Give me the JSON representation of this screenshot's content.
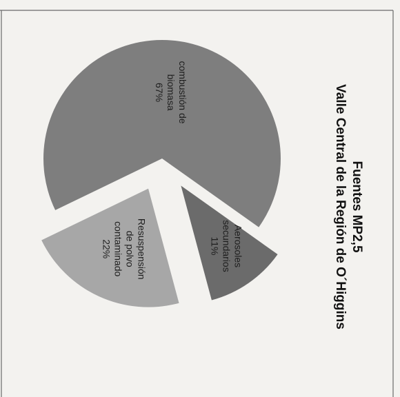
{
  "chart_data": {
    "type": "pie",
    "title": "Fuentes MP2,5",
    "subtitle": "Valle Central de la Región de O´Higgins",
    "orientation": "rotated 90° clockwise",
    "slices": [
      {
        "label_lines": [
          "Resuspensión",
          "de polvo",
          "contaminado"
        ],
        "value": 22,
        "value_label": "22%",
        "color": "#a7a7a7",
        "exploded": true
      },
      {
        "label_lines": [
          "combustión de",
          "biomasa"
        ],
        "value": 67,
        "value_label": "67%",
        "color": "#7e7e7e",
        "exploded": false
      },
      {
        "label_lines": [
          "Aerosoles",
          "secundarios"
        ],
        "value": 11,
        "value_label": "11%",
        "color": "#6b6b6b",
        "exploded": true
      }
    ]
  },
  "colors": {
    "background": "#f3f2ef",
    "frame": "#6a6a6a"
  }
}
